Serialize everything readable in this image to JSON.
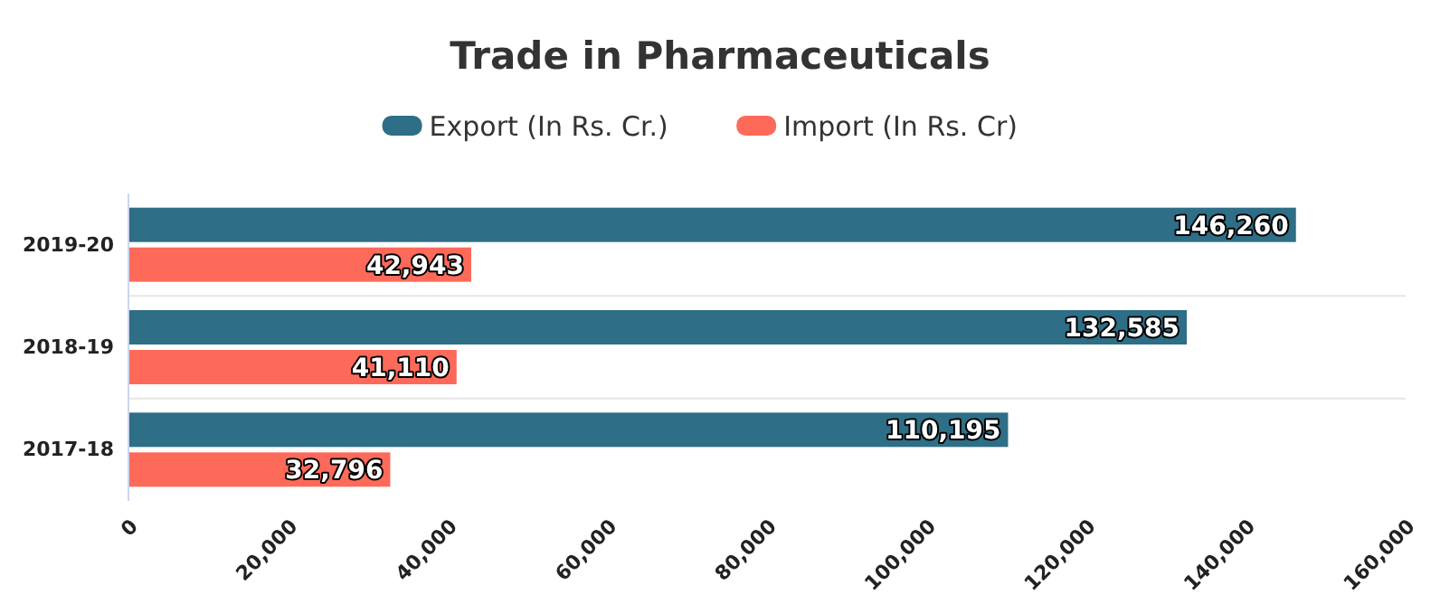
{
  "chart_data": {
    "type": "bar",
    "orientation": "horizontal",
    "title": "Trade in Pharmaceuticals",
    "categories": [
      "2019-20",
      "2018-19",
      "2017-18"
    ],
    "series": [
      {
        "name": "Export (In Rs. Cr.)",
        "color": "#2e6e86",
        "values": [
          146260,
          132585,
          110195
        ],
        "value_labels": [
          "146,260",
          "132,585",
          "110,195"
        ]
      },
      {
        "name": "Import (In Rs. Cr)",
        "color": "#fe6a5a",
        "values": [
          42943,
          41110,
          32796
        ],
        "value_labels": [
          "42,943",
          "41,110",
          "32,796"
        ]
      }
    ],
    "xlim": [
      0,
      160000
    ],
    "xticks": [
      {
        "value": 0,
        "label": "0"
      },
      {
        "value": 20000,
        "label": "20,000"
      },
      {
        "value": 40000,
        "label": "40,000"
      },
      {
        "value": 60000,
        "label": "60,000"
      },
      {
        "value": 80000,
        "label": "80,000"
      },
      {
        "value": 100000,
        "label": "100,000"
      },
      {
        "value": 120000,
        "label": "120,000"
      },
      {
        "value": 140000,
        "label": "140,000"
      },
      {
        "value": 160000,
        "label": "160,000"
      }
    ],
    "legend": "top"
  }
}
